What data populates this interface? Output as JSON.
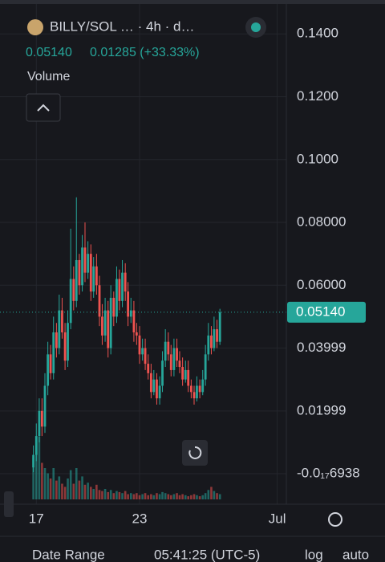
{
  "header": {
    "symbol": "BILLY/SOL … · 4h · d…",
    "price": "0.05140",
    "change": "0.01285 (+33.33%)",
    "volume_label": "Volume"
  },
  "footer": {
    "date_range": "Date Range",
    "time": "05:41:25 (UTC-5)",
    "log": "log",
    "auto": "auto"
  },
  "chart_data": {
    "type": "candlestick",
    "up_color": "#26a69a",
    "down_color": "#ef5350",
    "x": [
      16.83,
      17,
      17.17,
      17.33,
      17.5,
      17.67,
      17.83,
      18,
      18.17,
      18.33,
      18.5,
      18.67,
      18.83,
      19,
      19.17,
      19.33,
      19.5,
      19.67,
      19.83,
      20,
      20.17,
      20.33,
      20.5,
      20.67,
      20.83,
      21,
      21.17,
      21.33,
      21.5,
      21.67,
      21.83,
      22,
      22.17,
      22.33,
      22.5,
      22.67,
      22.83,
      23,
      23.17,
      23.33,
      23.5,
      23.67,
      23.83,
      24,
      24.17,
      24.33,
      24.5,
      24.67,
      24.83,
      25,
      25.17,
      25.33,
      25.5,
      25.67,
      25.83,
      26,
      26.17,
      26.33,
      26.5,
      26.67,
      26.83,
      27,
      27.17,
      27.33,
      27.5,
      27.67
    ],
    "open": [
      0.002,
      0.006,
      0.012,
      0.02,
      0.015,
      0.028,
      0.038,
      0.032,
      0.045,
      0.04,
      0.052,
      0.045,
      0.036,
      0.048,
      0.062,
      0.055,
      0.068,
      0.06,
      0.072,
      0.064,
      0.07,
      0.058,
      0.066,
      0.06,
      0.05,
      0.044,
      0.052,
      0.04,
      0.056,
      0.05,
      0.062,
      0.055,
      0.064,
      0.058,
      0.05,
      0.052,
      0.045,
      0.044,
      0.038,
      0.04,
      0.035,
      0.032,
      0.026,
      0.03,
      0.024,
      0.028,
      0.036,
      0.042,
      0.038,
      0.033,
      0.04,
      0.036,
      0.034,
      0.03,
      0.033,
      0.028,
      0.026,
      0.024,
      0.028,
      0.026,
      0.03,
      0.038,
      0.044,
      0.04,
      0.046,
      0.042
    ],
    "high": [
      0.009,
      0.016,
      0.024,
      0.024,
      0.032,
      0.042,
      0.041,
      0.05,
      0.048,
      0.057,
      0.056,
      0.048,
      0.052,
      0.078,
      0.066,
      0.088,
      0.07,
      0.076,
      0.08,
      0.074,
      0.073,
      0.069,
      0.07,
      0.063,
      0.054,
      0.056,
      0.055,
      0.06,
      0.058,
      0.066,
      0.065,
      0.068,
      0.067,
      0.061,
      0.056,
      0.055,
      0.048,
      0.047,
      0.043,
      0.043,
      0.038,
      0.035,
      0.033,
      0.032,
      0.031,
      0.039,
      0.046,
      0.045,
      0.041,
      0.043,
      0.043,
      0.039,
      0.037,
      0.036,
      0.036,
      0.03,
      0.028,
      0.031,
      0.03,
      0.033,
      0.041,
      0.048,
      0.047,
      0.05,
      0.049,
      0.0525
    ],
    "low": [
      0.0005,
      0.004,
      0.01,
      0.012,
      0.013,
      0.025,
      0.03,
      0.03,
      0.037,
      0.038,
      0.043,
      0.033,
      0.034,
      0.046,
      0.052,
      0.053,
      0.057,
      0.058,
      0.061,
      0.062,
      0.055,
      0.056,
      0.057,
      0.047,
      0.041,
      0.042,
      0.037,
      0.038,
      0.047,
      0.048,
      0.052,
      0.053,
      0.055,
      0.047,
      0.048,
      0.042,
      0.041,
      0.035,
      0.036,
      0.033,
      0.03,
      0.024,
      0.025,
      0.022,
      0.022,
      0.026,
      0.034,
      0.036,
      0.031,
      0.031,
      0.034,
      0.032,
      0.028,
      0.029,
      0.026,
      0.024,
      0.022,
      0.023,
      0.024,
      0.025,
      0.028,
      0.036,
      0.038,
      0.039,
      0.04,
      0.041
    ],
    "close": [
      0.006,
      0.012,
      0.02,
      0.015,
      0.028,
      0.038,
      0.032,
      0.045,
      0.04,
      0.052,
      0.045,
      0.036,
      0.048,
      0.062,
      0.055,
      0.068,
      0.06,
      0.072,
      0.064,
      0.07,
      0.058,
      0.066,
      0.06,
      0.05,
      0.044,
      0.052,
      0.04,
      0.056,
      0.05,
      0.062,
      0.055,
      0.064,
      0.058,
      0.05,
      0.052,
      0.045,
      0.044,
      0.038,
      0.04,
      0.035,
      0.032,
      0.026,
      0.03,
      0.024,
      0.028,
      0.036,
      0.042,
      0.038,
      0.033,
      0.04,
      0.036,
      0.034,
      0.03,
      0.033,
      0.028,
      0.026,
      0.024,
      0.028,
      0.026,
      0.03,
      0.038,
      0.044,
      0.04,
      0.046,
      0.042,
      0.0514
    ],
    "volume": [
      40,
      55,
      60,
      35,
      30,
      25,
      20,
      30,
      18,
      22,
      15,
      12,
      20,
      28,
      15,
      30,
      18,
      22,
      14,
      16,
      12,
      10,
      14,
      9,
      8,
      10,
      7,
      9,
      6,
      8,
      7,
      6,
      8,
      5,
      6,
      5,
      6,
      4,
      5,
      6,
      4,
      5,
      4,
      6,
      5,
      7,
      6,
      5,
      4,
      5,
      6,
      4,
      5,
      4,
      3,
      4,
      5,
      4,
      3,
      4,
      6,
      9,
      12,
      8,
      6,
      5
    ],
    "last_price": {
      "value": 0.0514,
      "label": "0.05140"
    },
    "xlim": [
      14.89,
      31.53
    ],
    "xticks": [
      17,
      23,
      {
        "value": 31,
        "label": "Jul"
      }
    ],
    "ylim": [
      -0.0097,
      0.1508
    ],
    "yticks": [
      {
        "value": -6.938e-19,
        "label": "-0.0₁₇6938"
      },
      0.01999,
      0.03999,
      {
        "value": 0.06,
        "label": "0.06000"
      },
      {
        "value": 0.08,
        "label": "0.08000"
      },
      {
        "value": 0.1,
        "label": "0.1000"
      },
      {
        "value": 0.12,
        "label": "0.1200"
      },
      {
        "value": 0.14,
        "label": "0.1400"
      }
    ],
    "grid": true
  }
}
